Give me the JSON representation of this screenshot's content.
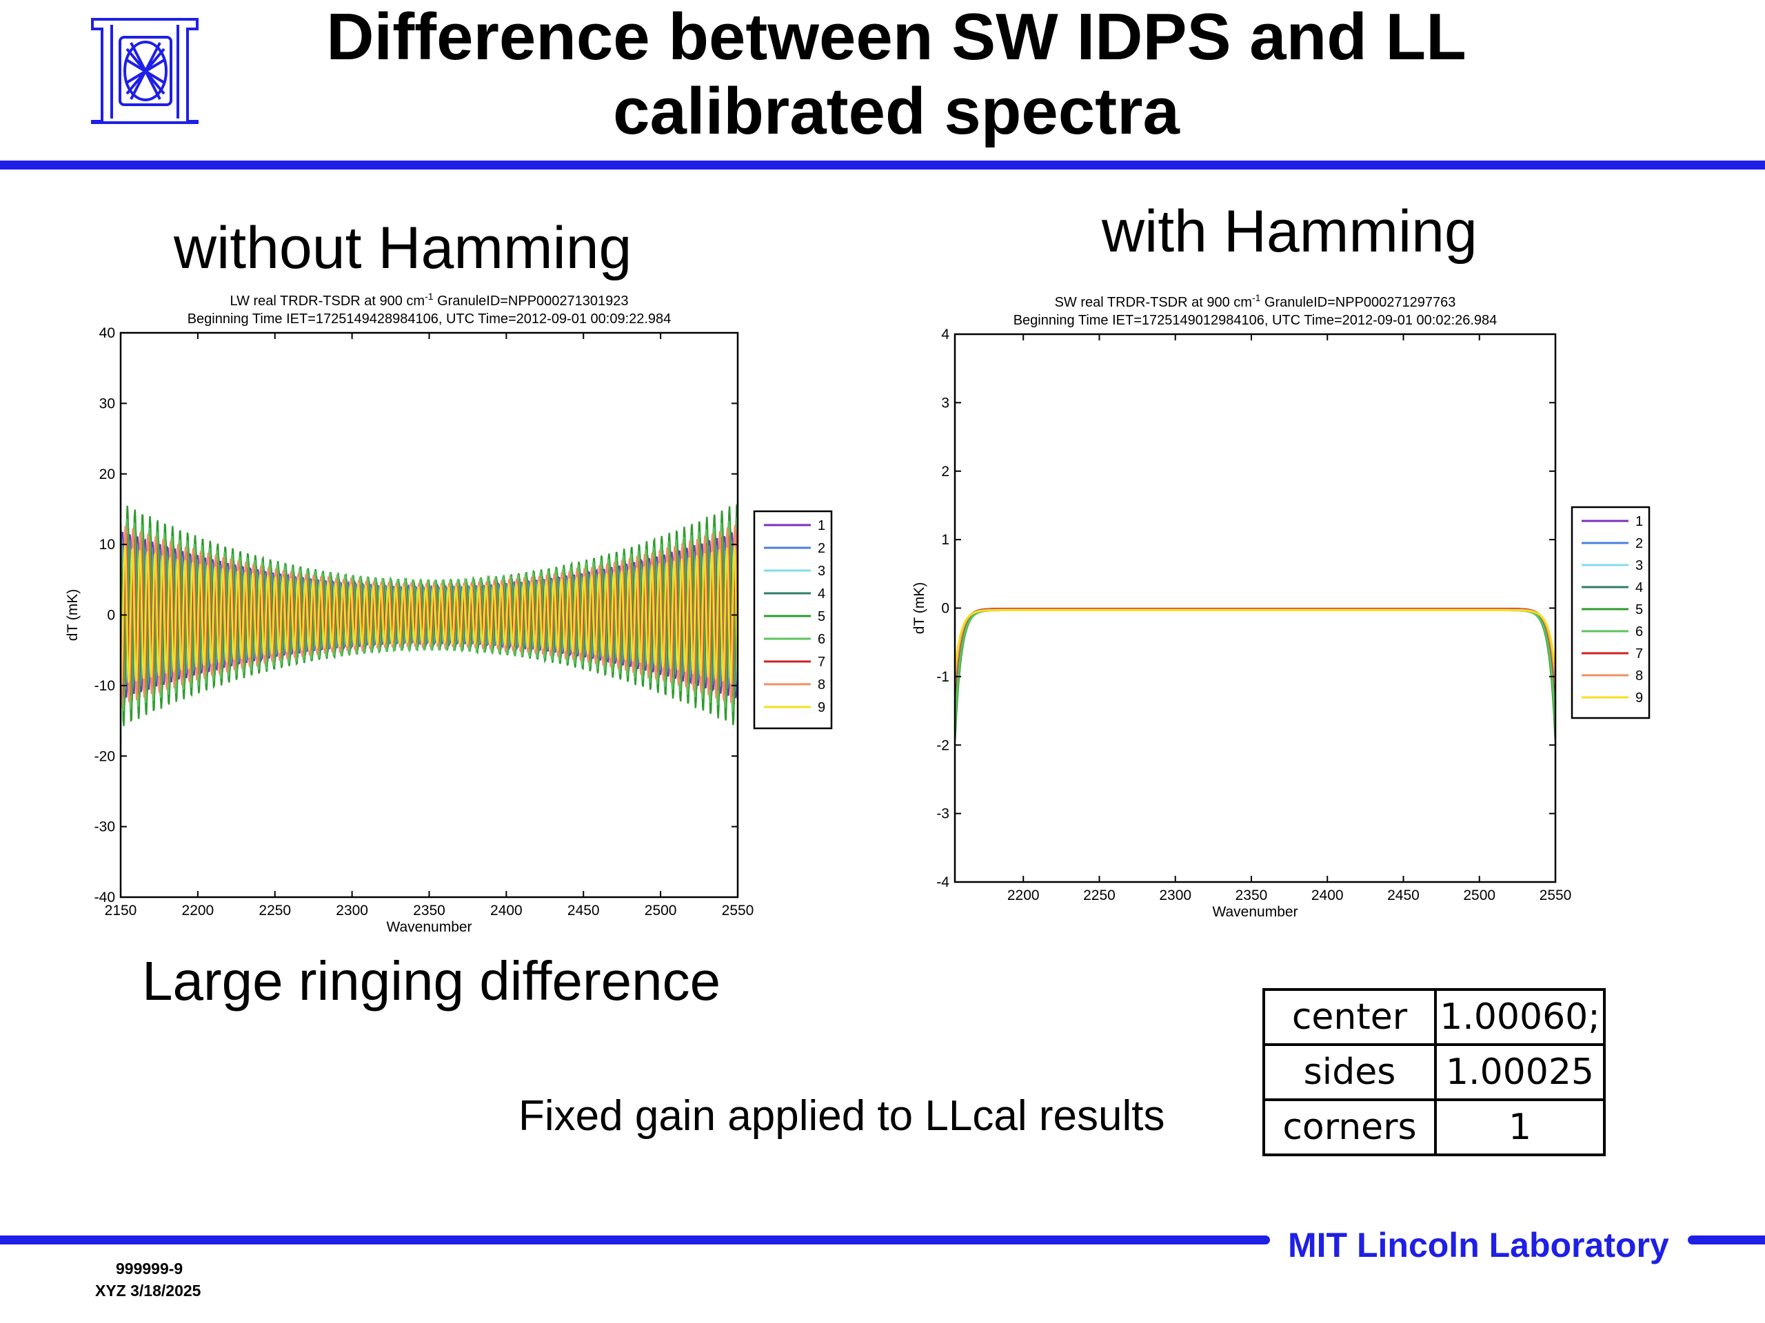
{
  "slide": {
    "title_line1": "Difference between SW IDPS and LL",
    "title_line2": "calibrated spectra",
    "left_caption": "without Hamming",
    "right_caption": "with Hamming",
    "ringing_note": "Large ringing difference",
    "gain_note": "Fixed gain applied to LLcal results",
    "gain_table": [
      {
        "label": "center",
        "value": "1.00060;"
      },
      {
        "label": "sides",
        "value": "1.00025"
      },
      {
        "label": "corners",
        "value": "1"
      }
    ],
    "footer_lab": "MIT Lincoln Laboratory",
    "footer_id": "999999-9",
    "footer_date": "XYZ 3/18/2025",
    "accent_color": "#1f1fe6",
    "logo": "mit-ll-logo-icon"
  },
  "chart_data": [
    {
      "type": "line",
      "title_line1": "LW real TRDR-TSDR at 900 cm",
      "title_sup": "-1",
      "title_line1_tail": " GranuleID=NPP000271301923",
      "title_line2": "Beginning Time IET=1725149428984106, UTC Time=2012-09-01 00:09:22.984",
      "xlabel": "Wavenumber",
      "ylabel": "dT (mK)",
      "xlim": [
        2150,
        2550
      ],
      "ylim": [
        -40,
        40
      ],
      "xticks": [
        2150,
        2200,
        2250,
        2300,
        2350,
        2400,
        2450,
        2500,
        2550
      ],
      "yticks": [
        -40,
        -30,
        -20,
        -10,
        0,
        10,
        20,
        30,
        40
      ],
      "legend_placement": "right-outside",
      "grid": false,
      "pattern": "oscillating ringing, envelope ~±15 at edges, ~±5 at center",
      "series": [
        {
          "name": "1",
          "color": "#7b2fbe",
          "edge_amplitude": 12,
          "center_amplitude": 4
        },
        {
          "name": "2",
          "color": "#4a7fe0",
          "edge_amplitude": 11,
          "center_amplitude": 4
        },
        {
          "name": "3",
          "color": "#7fdde8",
          "edge_amplitude": 11,
          "center_amplitude": 4
        },
        {
          "name": "4",
          "color": "#2f7d6a",
          "edge_amplitude": 13,
          "center_amplitude": 4.5
        },
        {
          "name": "5",
          "color": "#2e9b2e",
          "edge_amplitude": 16,
          "center_amplitude": 5
        },
        {
          "name": "6",
          "color": "#5ec25e",
          "edge_amplitude": 14,
          "center_amplitude": 5
        },
        {
          "name": "7",
          "color": "#cc2222",
          "edge_amplitude": 12,
          "center_amplitude": 4
        },
        {
          "name": "8",
          "color": "#ee9060",
          "edge_amplitude": 13,
          "center_amplitude": 4.5
        },
        {
          "name": "9",
          "color": "#f2e020",
          "edge_amplitude": 10,
          "center_amplitude": 4
        }
      ]
    },
    {
      "type": "line",
      "title_line1": "SW real TRDR-TSDR at 900 cm",
      "title_sup": "-1",
      "title_line1_tail": " GranuleID=NPP000271297763",
      "title_line2": "Beginning Time IET=1725149012984106, UTC Time=2012-09-01 00:02:26.984",
      "xlabel": "Wavenumber",
      "ylabel": "dT (mK)",
      "xlim": [
        2155,
        2550
      ],
      "ylim": [
        -4,
        4
      ],
      "xticks": [
        2200,
        2250,
        2300,
        2350,
        2400,
        2450,
        2500,
        2550
      ],
      "yticks": [
        -4,
        -3,
        -2,
        -1,
        0,
        1,
        2,
        3,
        4
      ],
      "legend_placement": "right-outside",
      "grid": false,
      "pattern": "flat near 0 with sharp drop at both edges",
      "series": [
        {
          "name": "1",
          "color": "#7b2fbe",
          "edge_min": -1.4
        },
        {
          "name": "2",
          "color": "#4a7fe0",
          "edge_min": -1.3
        },
        {
          "name": "3",
          "color": "#7fdde8",
          "edge_min": -1.2
        },
        {
          "name": "4",
          "color": "#2f7d6a",
          "edge_min": -1.5
        },
        {
          "name": "5",
          "color": "#2e9b2e",
          "edge_min": -1.9
        },
        {
          "name": "6",
          "color": "#5ec25e",
          "edge_min": -1.7
        },
        {
          "name": "7",
          "color": "#cc2222",
          "edge_min": -1.2
        },
        {
          "name": "8",
          "color": "#ee9060",
          "edge_min": -1.1
        },
        {
          "name": "9",
          "color": "#f2e020",
          "edge_min": -0.9
        }
      ]
    }
  ]
}
